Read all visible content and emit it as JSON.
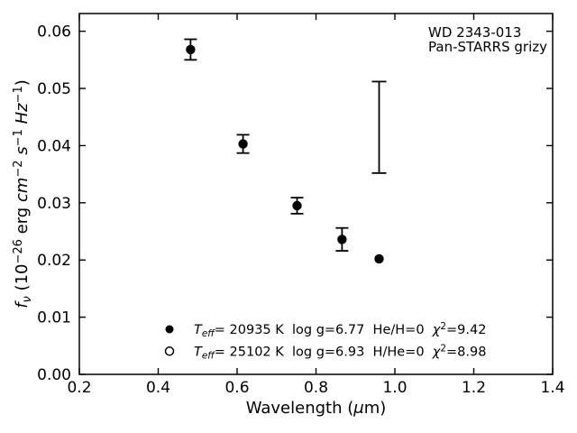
{
  "figure": {
    "background": "#ffffff",
    "foreground": "#000000"
  },
  "annotation": {
    "lines": [
      "WD 2343-013",
      "Pan-STARRS grizy"
    ]
  },
  "chart_data": {
    "type": "scatter",
    "title": "",
    "xlabel_segments": [
      {
        "t": "Wavelength ("
      },
      {
        "t": "μ",
        "i": true
      },
      {
        "t": "m)"
      }
    ],
    "ylabel_segments": [
      {
        "t": "f",
        "i": true
      },
      {
        "t": "ν",
        "i": true,
        "sub": true
      },
      {
        "t": " (10"
      },
      {
        "t": "−26",
        "sup": true
      },
      {
        "t": " erg "
      },
      {
        "t": "cm",
        "i": true
      },
      {
        "t": "−2",
        "sup": true
      },
      {
        "t": " "
      },
      {
        "t": "s",
        "i": true
      },
      {
        "t": "−1",
        "sup": true
      },
      {
        "t": " "
      },
      {
        "t": "Hz",
        "i": true
      },
      {
        "t": "−1",
        "sup": true
      },
      {
        "t": ")"
      }
    ],
    "xlim": [
      0.2,
      1.4
    ],
    "ylim": [
      0.0,
      0.0631
    ],
    "grid": false,
    "xticks": {
      "values": [
        0.2,
        0.4,
        0.6,
        0.8,
        1.0,
        1.2,
        1.4
      ],
      "labels": [
        "0.2",
        "0.4",
        "0.6",
        "0.8",
        "1.0",
        "1.2",
        "1.4"
      ]
    },
    "yticks": {
      "values": [
        0.0,
        0.01,
        0.02,
        0.03,
        0.04,
        0.05,
        0.06
      ],
      "labels": [
        "0.00",
        "0.01",
        "0.02",
        "0.03",
        "0.04",
        "0.05",
        "0.06"
      ]
    },
    "series": [
      {
        "name": "model-photometry-filled",
        "marker": "filled-circle",
        "color": "#000000",
        "points": [
          {
            "x": 0.482,
            "y": 0.0568,
            "yerr": 0.0018
          },
          {
            "x": 0.615,
            "y": 0.0403,
            "yerr": 0.0016
          },
          {
            "x": 0.752,
            "y": 0.0295,
            "yerr": 0.0014
          },
          {
            "x": 0.866,
            "y": 0.0236,
            "yerr": 0.002
          },
          {
            "x": 0.96,
            "y": 0.0202,
            "yerr": null
          }
        ]
      },
      {
        "name": "observed-y-band-errorbar",
        "marker": "errorbar-only",
        "color": "#000000",
        "points": [
          {
            "x": 0.96,
            "y": 0.0432,
            "yerr": 0.008
          }
        ]
      }
    ],
    "legend": {
      "position": "lower-center-inside",
      "frame": false,
      "rows": [
        {
          "marker": "filled-circle",
          "segments": [
            {
              "t": "T",
              "i": true
            },
            {
              "t": "eff",
              "i": true,
              "sub": true
            },
            {
              "t": "= 20935 K  log g=6.77  He/H=0  "
            },
            {
              "t": "χ",
              "i": true
            },
            {
              "t": "2",
              "sup": true
            },
            {
              "t": "=9.42"
            }
          ]
        },
        {
          "marker": "open-circle",
          "segments": [
            {
              "t": "T",
              "i": true
            },
            {
              "t": "eff",
              "i": true,
              "sub": true
            },
            {
              "t": "= 25102 K  log g=6.93  H/He=0  "
            },
            {
              "t": "χ",
              "i": true
            },
            {
              "t": "2",
              "sup": true
            },
            {
              "t": "=8.98"
            }
          ]
        }
      ]
    }
  }
}
